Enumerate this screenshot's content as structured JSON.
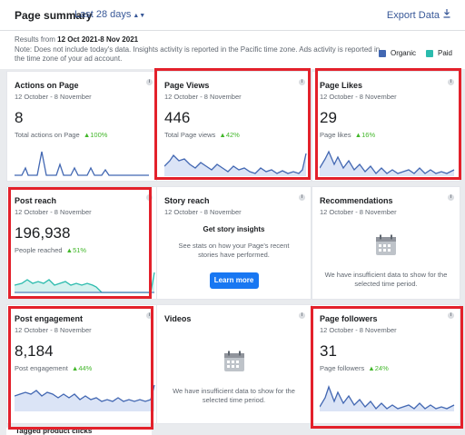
{
  "header": {
    "title": "Page summary",
    "period": "Last 28 days",
    "export": "Export Data"
  },
  "notice": {
    "results_prefix": "Results from",
    "results_range": "12 Oct 2021-8 Nov 2021",
    "note": "Note: Does not include today's data. Insights activity is reported in the Pacific time zone. Ads activity is reported in the time zone of your ad account.",
    "legend_organic": "Organic",
    "legend_paid": "Paid"
  },
  "colors": {
    "organic": "#4267b2",
    "paid": "#2bbbad",
    "highlight": "#e3212b",
    "up": "#42b72a"
  },
  "cards": {
    "actions": {
      "title": "Actions on Page",
      "date": "12 October - 8 November",
      "value": "8",
      "sub": "Total actions on Page",
      "pct": "100%"
    },
    "views": {
      "title": "Page Views",
      "date": "12 October - 8 November",
      "value": "446",
      "sub": "Total Page views",
      "pct": "42%"
    },
    "likes": {
      "title": "Page Likes",
      "date": "12 October - 8 November",
      "value": "29",
      "sub": "Page likes",
      "pct": "16%"
    },
    "reach": {
      "title": "Post reach",
      "date": "12 October - 8 November",
      "value": "196,938",
      "sub": "People reached",
      "pct": "51%"
    },
    "story": {
      "title": "Story reach",
      "date": "12 October - 8 November",
      "heading": "Get story insights",
      "body": "See stats on how your Page's recent stories have performed.",
      "button": "Learn more"
    },
    "recs": {
      "title": "Recommendations",
      "date": "12 October - 8 November",
      "message": "We have insufficient data to show for the selected time period."
    },
    "engagement": {
      "title": "Post engagement",
      "date": "12 October - 8 November",
      "value": "8,184",
      "sub": "Post engagement",
      "pct": "44%"
    },
    "videos": {
      "title": "Videos",
      "date": "12 October - 8 November",
      "message": "We have insufficient data to show for the selected time period."
    },
    "followers": {
      "title": "Page followers",
      "date": "12 October - 8 November",
      "value": "31",
      "sub": "Page followers",
      "pct": "24%"
    }
  },
  "bottom_card_title": "Tagged product clicks"
}
